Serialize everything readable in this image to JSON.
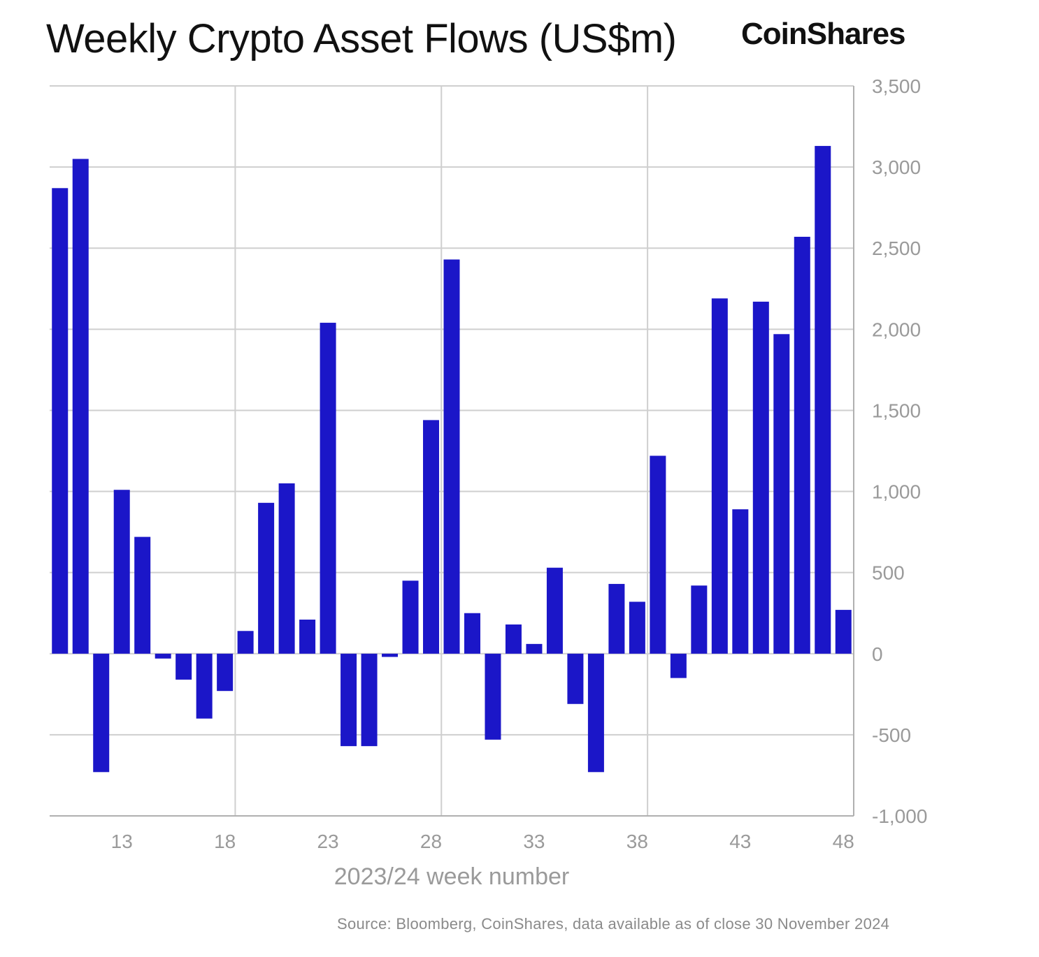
{
  "header": {
    "title": "Weekly Crypto Asset Flows (US$m)",
    "brand": "CoinShares"
  },
  "footer": {
    "source": "Source: Bloomberg, CoinShares, data available as of close 30 November 2024"
  },
  "colors": {
    "bar": "#1b16c8",
    "grid": "#cfcfcf",
    "axis": "#b0b0b0",
    "tick_text": "#9a9a9a"
  },
  "chart_data": {
    "type": "bar",
    "title": "Weekly Crypto Asset Flows (US$m)",
    "xlabel": "2023/24 week number",
    "ylabel": "",
    "ylim": [
      -1000,
      3500
    ],
    "y_ticks": [
      3500,
      3000,
      2500,
      2000,
      1500,
      1000,
      500,
      0,
      -500,
      -1000
    ],
    "y_tick_labels": [
      "3,500",
      "3,000",
      "2,500",
      "2,000",
      "1,500",
      "1,000",
      "500",
      "0",
      "-500",
      "-1,000"
    ],
    "y_axis_side": "right",
    "x_ticks": [
      13,
      18,
      23,
      28,
      33,
      38,
      43,
      48
    ],
    "x_vertical_gridlines_at": [
      18,
      28,
      38
    ],
    "grid": true,
    "categories": [
      10,
      11,
      12,
      13,
      14,
      15,
      16,
      17,
      18,
      19,
      20,
      21,
      22,
      23,
      24,
      25,
      26,
      27,
      28,
      29,
      30,
      31,
      32,
      33,
      34,
      35,
      36,
      37,
      38,
      39,
      40,
      41,
      42,
      43,
      44,
      45,
      46,
      47,
      48
    ],
    "values": [
      2870,
      3050,
      -730,
      1010,
      720,
      -30,
      -160,
      -400,
      -230,
      140,
      930,
      1050,
      210,
      2040,
      -570,
      -570,
      -20,
      450,
      1440,
      2430,
      250,
      -530,
      180,
      60,
      530,
      -310,
      -730,
      430,
      320,
      1220,
      -150,
      420,
      2190,
      890,
      2170,
      1970,
      2570,
      3130,
      270
    ]
  }
}
